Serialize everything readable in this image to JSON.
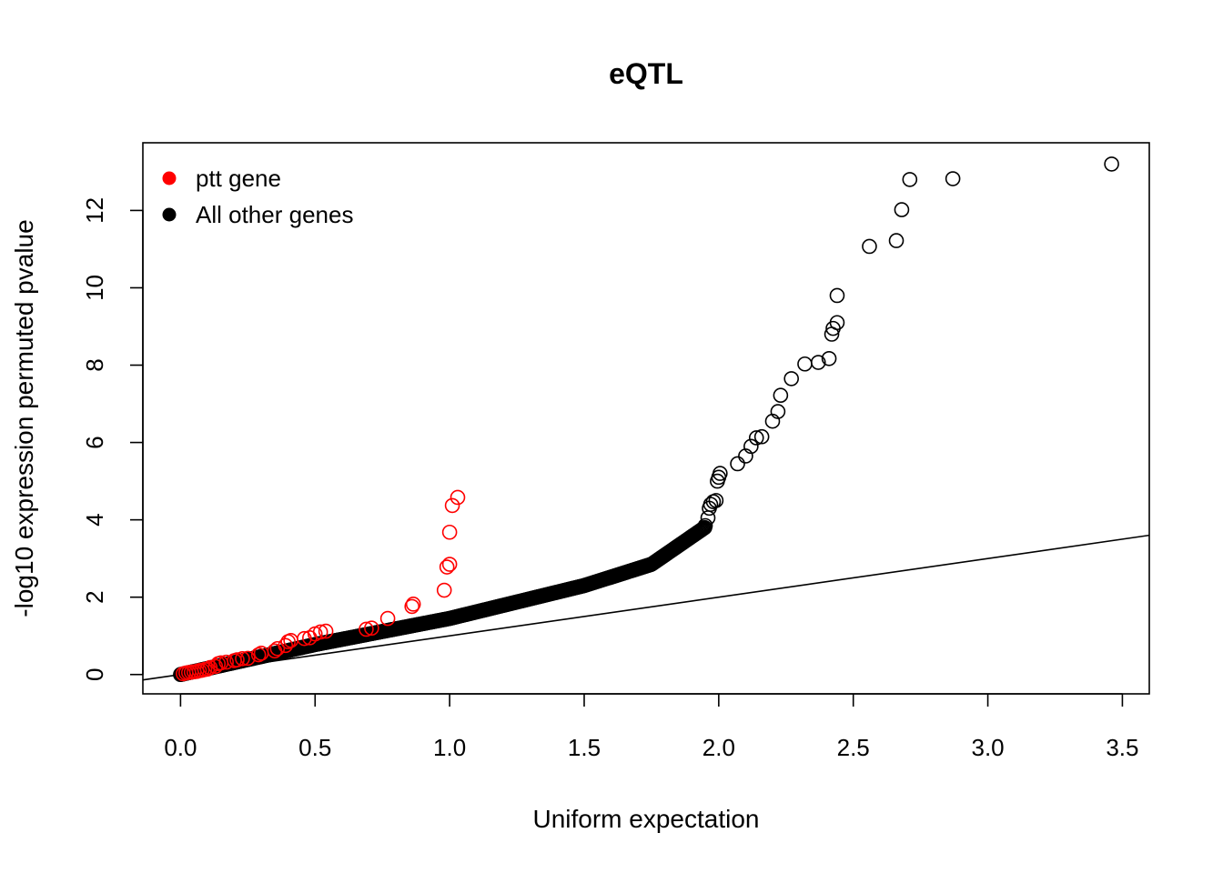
{
  "chart_data": {
    "type": "scatter",
    "title": "eQTL",
    "xlabel": "Uniform expectation",
    "ylabel": "-log10 expression permuted pvalue",
    "xlim": [
      -0.14,
      3.6
    ],
    "ylim": [
      -0.5,
      13.75
    ],
    "x_ticks": [
      0.0,
      0.5,
      1.0,
      1.5,
      2.0,
      2.5,
      3.0,
      3.5
    ],
    "x_tick_labels": [
      "0.0",
      "0.5",
      "1.0",
      "1.5",
      "2.0",
      "2.5",
      "3.0",
      "3.5"
    ],
    "y_ticks": [
      0,
      2,
      4,
      6,
      8,
      10,
      12
    ],
    "y_tick_labels": [
      "0",
      "2",
      "4",
      "6",
      "8",
      "10",
      "12"
    ],
    "legend": {
      "position": "top-left",
      "entries": [
        {
          "label": "ptt gene",
          "color": "#ff0000"
        },
        {
          "label": "All other genes",
          "color": "#000000"
        }
      ]
    },
    "reference_line": {
      "label": "y = x",
      "slope": 1,
      "intercept": 0
    },
    "series": [
      {
        "name": "ptt gene",
        "color": "#ff0000",
        "marker": "open-circle",
        "points": [
          [
            0.01,
            0.02
          ],
          [
            0.02,
            0.04
          ],
          [
            0.03,
            0.05
          ],
          [
            0.04,
            0.06
          ],
          [
            0.05,
            0.07
          ],
          [
            0.06,
            0.08
          ],
          [
            0.07,
            0.1
          ],
          [
            0.08,
            0.11
          ],
          [
            0.09,
            0.13
          ],
          [
            0.1,
            0.14
          ],
          [
            0.11,
            0.18
          ],
          [
            0.13,
            0.21
          ],
          [
            0.14,
            0.28
          ],
          [
            0.15,
            0.3
          ],
          [
            0.17,
            0.32
          ],
          [
            0.2,
            0.36
          ],
          [
            0.21,
            0.38
          ],
          [
            0.23,
            0.41
          ],
          [
            0.25,
            0.42
          ],
          [
            0.29,
            0.51
          ],
          [
            0.3,
            0.55
          ],
          [
            0.35,
            0.61
          ],
          [
            0.36,
            0.67
          ],
          [
            0.39,
            0.75
          ],
          [
            0.4,
            0.85
          ],
          [
            0.41,
            0.88
          ],
          [
            0.46,
            0.93
          ],
          [
            0.48,
            0.95
          ],
          [
            0.5,
            1.05
          ],
          [
            0.52,
            1.1
          ],
          [
            0.54,
            1.12
          ],
          [
            0.69,
            1.17
          ],
          [
            0.71,
            1.2
          ],
          [
            0.77,
            1.45
          ],
          [
            0.86,
            1.76
          ],
          [
            0.865,
            1.82
          ],
          [
            0.98,
            2.18
          ],
          [
            0.99,
            2.78
          ],
          [
            1.0,
            2.85
          ],
          [
            1.0,
            3.68
          ],
          [
            1.01,
            4.37
          ],
          [
            1.03,
            4.58
          ]
        ]
      },
      {
        "name": "All other genes",
        "color": "#000000",
        "marker": "open-circle",
        "points": [
          [
            1.95,
            3.85
          ],
          [
            1.96,
            4.05
          ],
          [
            1.965,
            4.3
          ],
          [
            1.97,
            4.4
          ],
          [
            1.98,
            4.47
          ],
          [
            1.99,
            4.5
          ],
          [
            1.995,
            5.0
          ],
          [
            2.0,
            5.1
          ],
          [
            2.005,
            5.2
          ],
          [
            2.07,
            5.45
          ],
          [
            2.1,
            5.65
          ],
          [
            2.12,
            5.9
          ],
          [
            2.14,
            6.12
          ],
          [
            2.16,
            6.15
          ],
          [
            2.2,
            6.55
          ],
          [
            2.22,
            6.8
          ],
          [
            2.23,
            7.22
          ],
          [
            2.27,
            7.65
          ],
          [
            2.32,
            8.03
          ],
          [
            2.37,
            8.07
          ],
          [
            2.41,
            8.17
          ],
          [
            2.42,
            8.8
          ],
          [
            2.425,
            8.95
          ],
          [
            2.44,
            9.1
          ],
          [
            2.44,
            9.8
          ],
          [
            2.56,
            11.07
          ],
          [
            2.66,
            11.22
          ],
          [
            2.68,
            12.02
          ],
          [
            2.71,
            12.8
          ],
          [
            2.87,
            12.82
          ],
          [
            3.46,
            13.2
          ]
        ]
      }
    ]
  }
}
